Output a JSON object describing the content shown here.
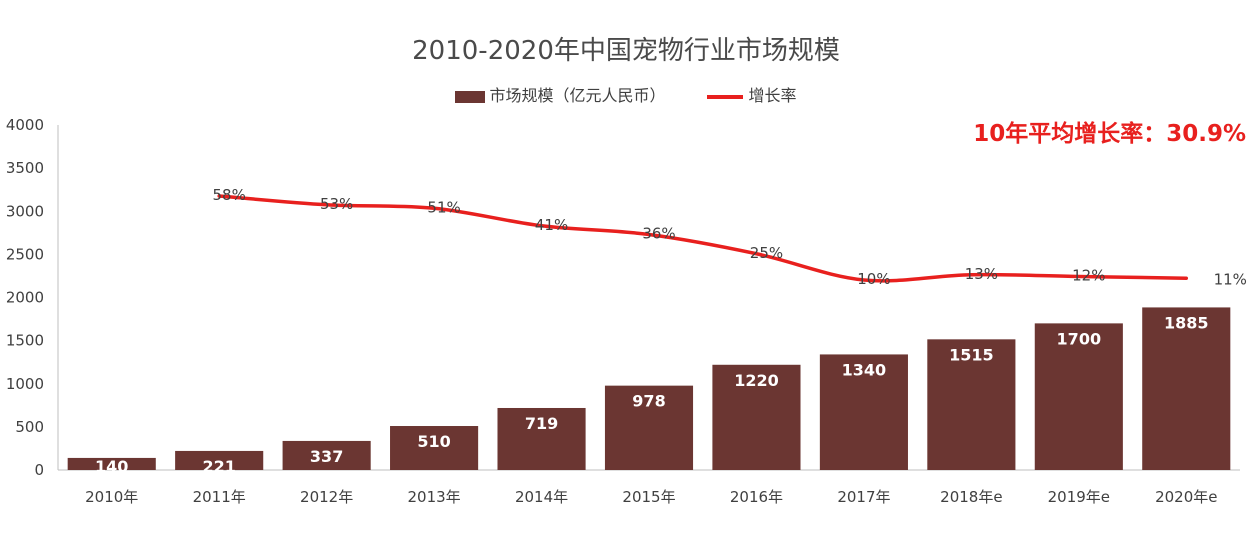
{
  "chart_data": {
    "type": "bar",
    "title": "2010-2020年中国宠物行业市场规模",
    "categories": [
      "2010年",
      "2011年",
      "2012年",
      "2013年",
      "2014年",
      "2015年",
      "2016年",
      "2017年",
      "2018年e",
      "2019年e",
      "2020年e"
    ],
    "series": [
      {
        "name": "市场规模（亿元人民币）",
        "type": "bar",
        "values": [
          140,
          221,
          337,
          510,
          719,
          978,
          1220,
          1340,
          1515,
          1700,
          1885
        ],
        "labels": [
          "140",
          "221",
          "337",
          "510",
          "719",
          "978",
          "1220",
          "1340",
          "1515",
          "1700",
          "1885"
        ]
      },
      {
        "name": "增长率",
        "type": "line",
        "values": [
          null,
          58,
          53,
          51,
          41,
          36,
          25,
          10,
          13,
          12,
          11
        ],
        "labels": [
          "",
          "58%",
          "53%",
          "51%",
          "41%",
          "36%",
          "25%",
          "10%",
          "13%",
          "12%",
          "11%"
        ]
      }
    ],
    "yticks": [
      "0",
      "500",
      "1000",
      "1500",
      "2000",
      "2500",
      "3000",
      "3500",
      "4000"
    ],
    "ylim": [
      0,
      4000
    ],
    "annotation": "10年平均增长率：30.9%",
    "legend_position": "top",
    "colors": {
      "bar": "#6b3632",
      "line": "#e8201e"
    }
  }
}
